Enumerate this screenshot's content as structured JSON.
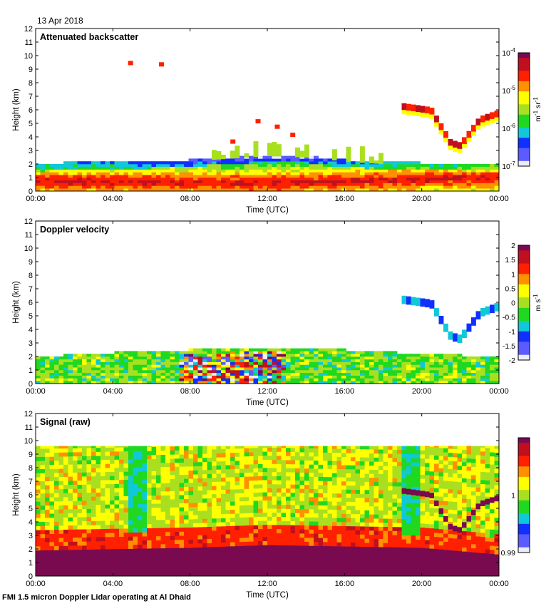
{
  "header": {
    "date": "13 Apr 2018"
  },
  "footer": {
    "caption": "FMI 1.5 micron Doppler Lidar operating at Al Dhaid"
  },
  "colormap": [
    "#ececfa",
    "#5b5bff",
    "#1030ff",
    "#10c8d8",
    "#20d820",
    "#a8e020",
    "#ffff00",
    "#ff9000",
    "#ff2000",
    "#c01020",
    "#7a0a50"
  ],
  "chart_data": [
    {
      "type": "heatmap",
      "title": "Attenuated backscatter",
      "xlabel": "Time (UTC)",
      "ylabel": "Height (km)",
      "x_ticks": [
        "00:00",
        "04:00",
        "08:00",
        "12:00",
        "16:00",
        "20:00",
        "00:00"
      ],
      "xlim_hours": [
        0,
        24
      ],
      "ylim_km": [
        0,
        12
      ],
      "y_ticks": [
        0,
        1,
        2,
        3,
        4,
        5,
        6,
        7,
        8,
        9,
        10,
        11,
        12
      ],
      "colorbar": {
        "scale": "log",
        "range": [
          1e-07,
          0.0001
        ],
        "ticks": [
          {
            "base": "10",
            "exp": "-4",
            "frac": 1.0
          },
          {
            "base": "10",
            "exp": "-5",
            "frac": 0.6667
          },
          {
            "base": "10",
            "exp": "-6",
            "frac": 0.3333
          },
          {
            "base": "10",
            "exp": "-7",
            "frac": 0.0
          }
        ],
        "unit_parts": [
          "m",
          "-1",
          " sr",
          "-1"
        ]
      },
      "features": {
        "boundary_layer_top_km": [
          [
            0,
            1.8
          ],
          [
            2,
            2.1
          ],
          [
            4,
            2.0
          ],
          [
            6,
            2.1
          ],
          [
            8,
            2.2
          ],
          [
            10,
            2.4
          ],
          [
            12,
            2.6
          ],
          [
            14,
            2.5
          ],
          [
            16,
            2.2
          ],
          [
            18,
            2.0
          ],
          [
            20,
            2.0
          ],
          [
            22,
            1.9
          ],
          [
            24,
            1.8
          ]
        ],
        "aerosol_core_km": [
          [
            0,
            0.6
          ],
          [
            4,
            0.6
          ],
          [
            8,
            0.5
          ],
          [
            12,
            0.5
          ],
          [
            16,
            0.6
          ],
          [
            20,
            0.8
          ],
          [
            24,
            0.9
          ]
        ],
        "elevated_cloud_km": [
          [
            19,
            6.5
          ],
          [
            20.5,
            6.2
          ],
          [
            21.5,
            3.8
          ],
          [
            22,
            3.6
          ],
          [
            23,
            5.5
          ],
          [
            24,
            6.0
          ]
        ],
        "isolated_returns_km": [
          [
            4.9,
            9.4
          ],
          [
            6.5,
            9.3
          ],
          [
            11.5,
            5.1
          ],
          [
            12.5,
            4.7
          ],
          [
            13.3,
            4.1
          ],
          [
            10.2,
            3.6
          ]
        ]
      }
    },
    {
      "type": "heatmap",
      "title": "Doppler velocity",
      "xlabel": "Time (UTC)",
      "ylabel": "Height (km)",
      "x_ticks": [
        "00:00",
        "04:00",
        "08:00",
        "12:00",
        "16:00",
        "20:00",
        "00:00"
      ],
      "xlim_hours": [
        0,
        24
      ],
      "ylim_km": [
        0,
        12
      ],
      "y_ticks": [
        0,
        1,
        2,
        3,
        4,
        5,
        6,
        7,
        8,
        9,
        10,
        11,
        12
      ],
      "colorbar": {
        "scale": "linear",
        "range": [
          -2,
          2
        ],
        "ticks": [
          "2",
          "1.5",
          "1",
          "0.5",
          "0",
          "-0.5",
          "-1",
          "-1.5",
          "-2"
        ],
        "unit_parts": [
          "m s",
          "-1"
        ]
      },
      "features": {
        "boundary_layer_top_km": [
          [
            0,
            1.9
          ],
          [
            4,
            2.2
          ],
          [
            8,
            2.4
          ],
          [
            12,
            2.6
          ],
          [
            16,
            2.4
          ],
          [
            20,
            2.1
          ],
          [
            24,
            1.9
          ]
        ],
        "convective_period_hours": [
          7.5,
          13
        ],
        "elevated_cloud_km": [
          [
            19,
            6.5
          ],
          [
            20.5,
            6.2
          ],
          [
            21.5,
            3.8
          ],
          [
            22,
            3.6
          ],
          [
            23,
            5.5
          ],
          [
            24,
            6.0
          ]
        ]
      }
    },
    {
      "type": "heatmap",
      "title": "Signal (raw)",
      "xlabel": "Time (UTC)",
      "ylabel": "Height (km)",
      "x_ticks": [
        "00:00",
        "04:00",
        "08:00",
        "12:00",
        "16:00",
        "20:00",
        "00:00"
      ],
      "xlim_hours": [
        0,
        24
      ],
      "ylim_km": [
        0,
        12
      ],
      "y_ticks": [
        0,
        1,
        2,
        3,
        4,
        5,
        6,
        7,
        8,
        9,
        10,
        11,
        12
      ],
      "colorbar": {
        "scale": "linear",
        "range": [
          0.99,
          1.01
        ],
        "ticks": [
          "1",
          "0.99"
        ],
        "unit_parts": []
      },
      "features": {
        "data_top_km": 9.6,
        "saturated_top_km": [
          [
            0,
            1.9
          ],
          [
            4,
            2.0
          ],
          [
            8,
            2.1
          ],
          [
            12,
            2.3
          ],
          [
            16,
            2.2
          ],
          [
            20,
            2.1
          ],
          [
            24,
            1.6
          ]
        ],
        "low_signal_bands_hours": [
          [
            4.9,
            5.8
          ],
          [
            18.9,
            19.9
          ]
        ],
        "elevated_cloud_km": [
          [
            19,
            6.5
          ],
          [
            20.5,
            6.2
          ],
          [
            21.5,
            3.8
          ],
          [
            22,
            3.6
          ],
          [
            23,
            5.5
          ],
          [
            24,
            6.0
          ]
        ]
      }
    }
  ]
}
